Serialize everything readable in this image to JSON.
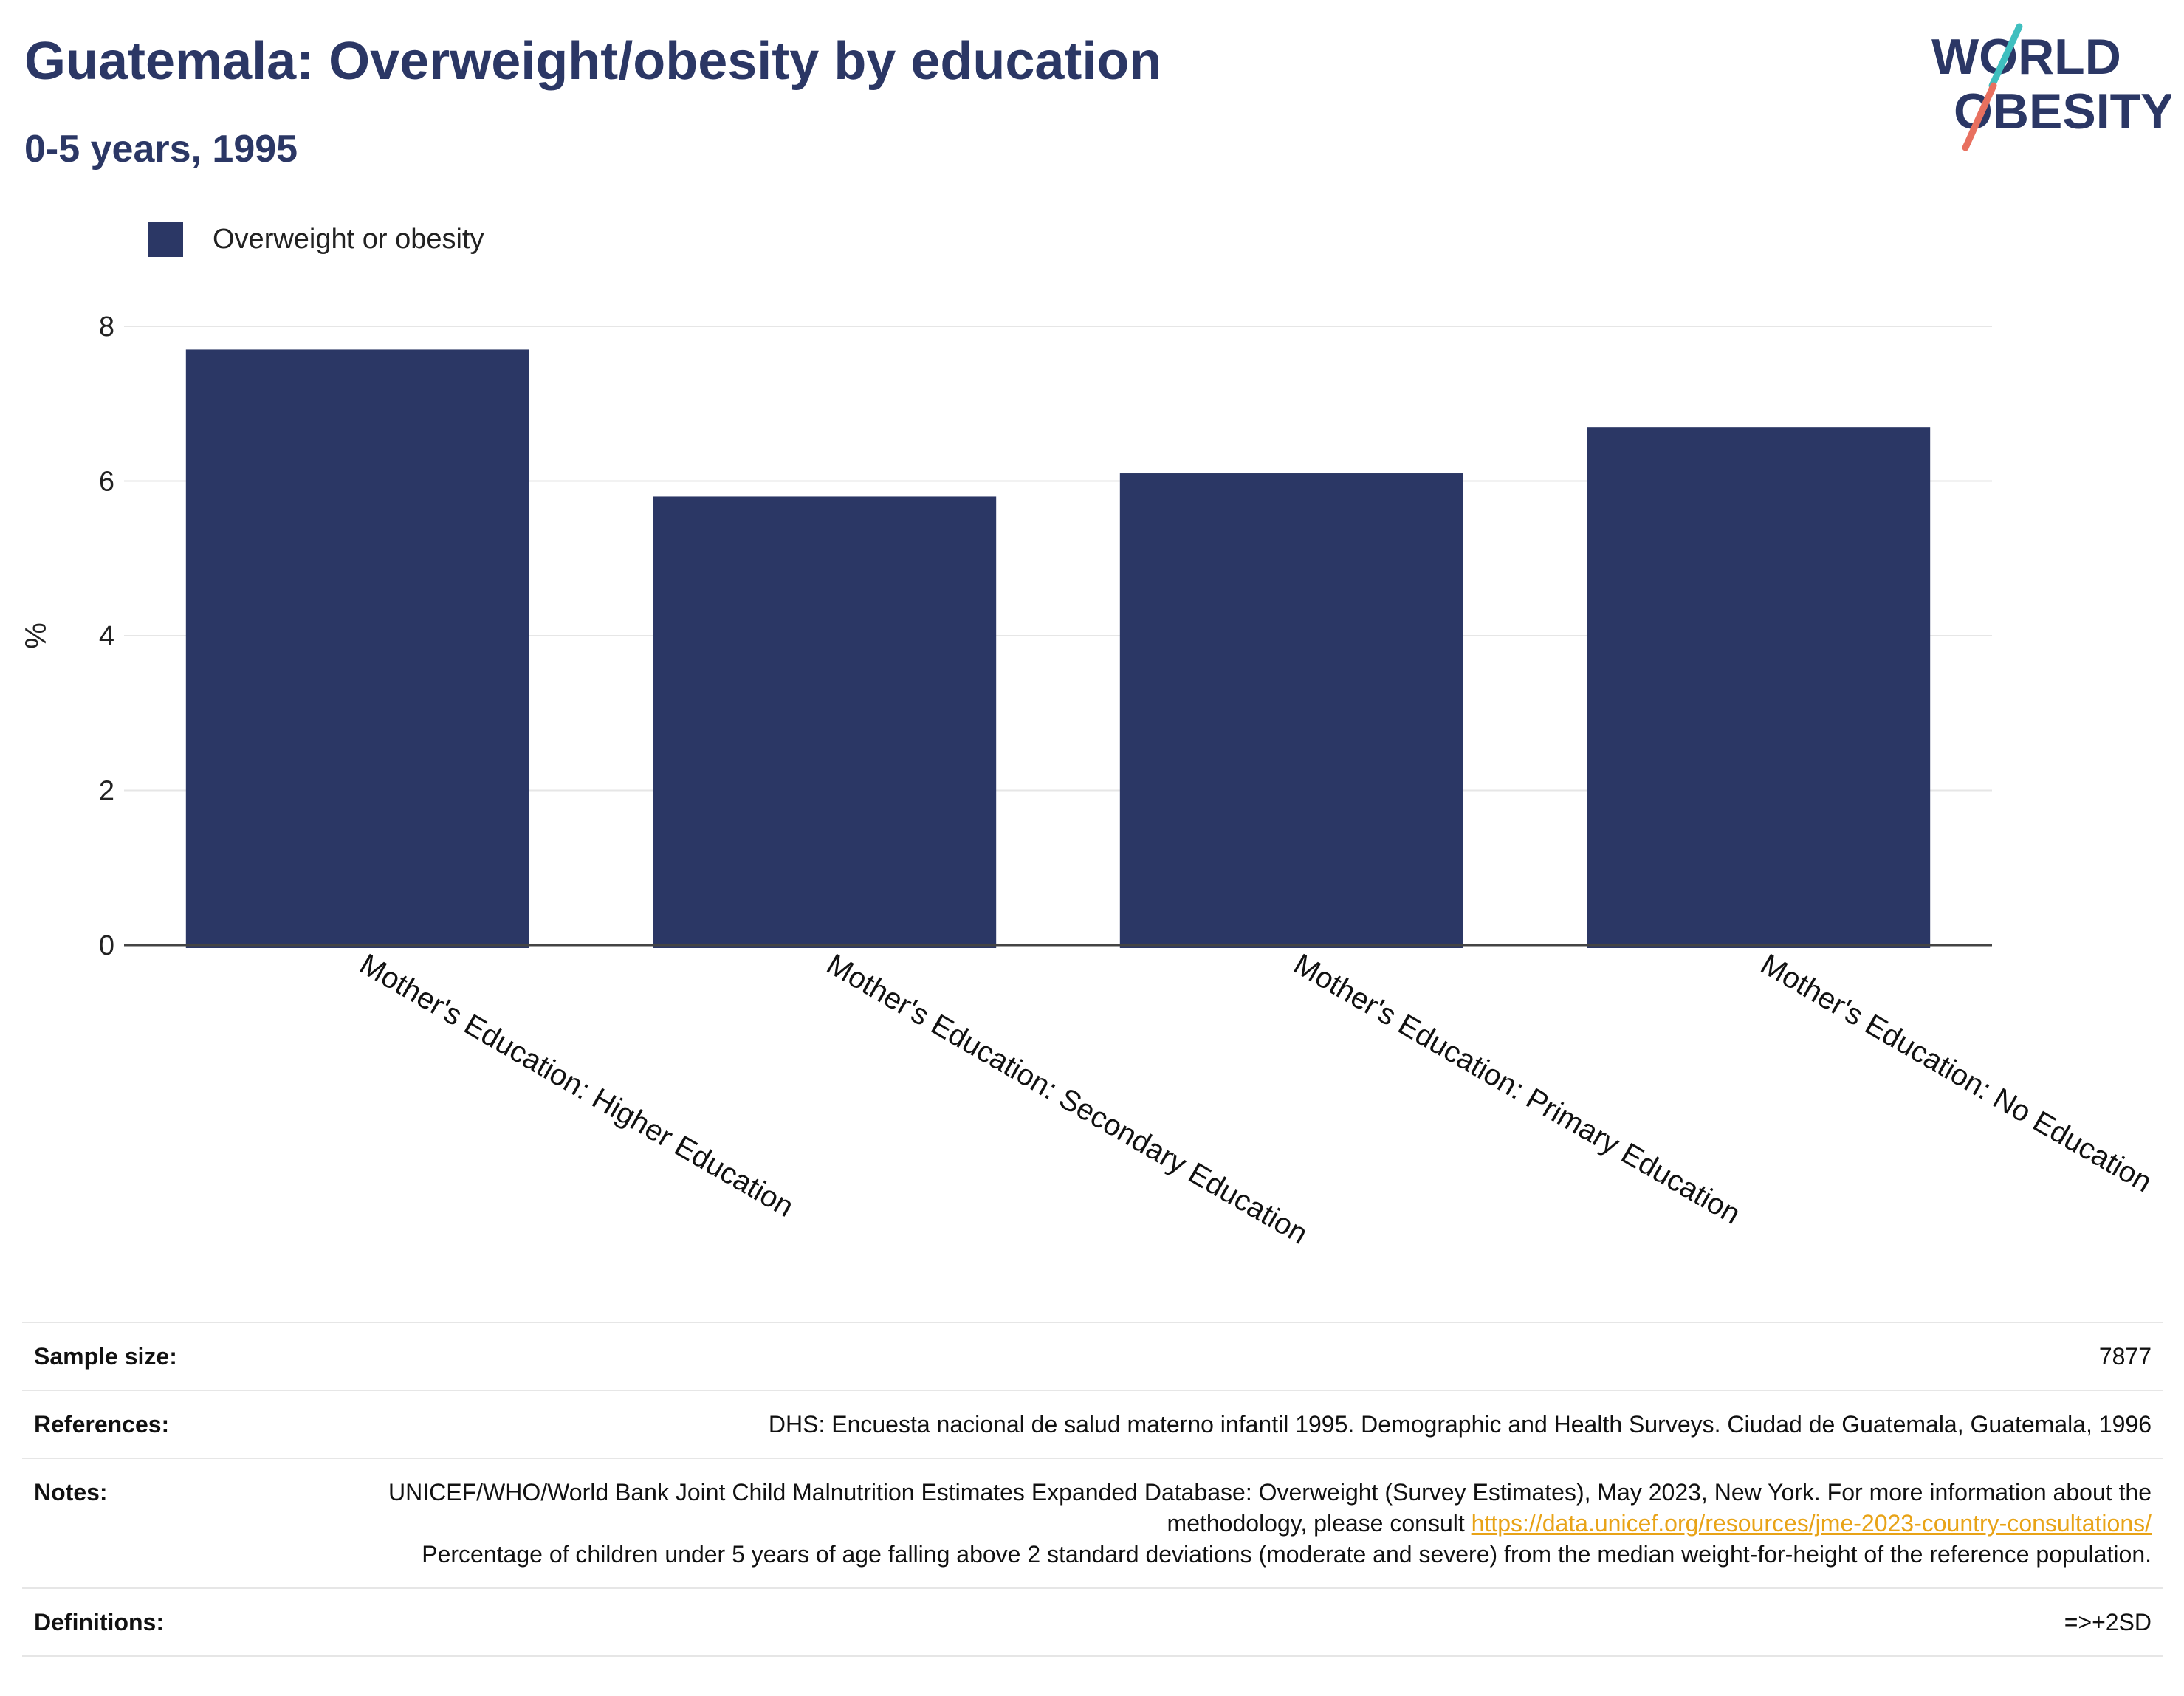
{
  "header": {
    "title": "Guatemala: Overweight/obesity by education",
    "subtitle": "0-5 years, 1995"
  },
  "logo": {
    "line1": "WORLD",
    "line2": "OBESITY",
    "colors": {
      "text": "#2b3765",
      "slash_top": "#3fbfbf",
      "slash_bottom": "#e8705f"
    }
  },
  "legend": {
    "label": "Overweight or obesity",
    "color": "#2b3765"
  },
  "chart_data": {
    "type": "bar",
    "categories": [
      "Mother's Education: Higher Education",
      "Mother's Education: Secondary Education",
      "Mother's Education: Primary Education",
      "Mother's Education: No Education"
    ],
    "series": [
      {
        "name": "Overweight or obesity",
        "values": [
          7.7,
          5.8,
          6.1,
          6.7
        ],
        "color": "#2b3765"
      }
    ],
    "ylabel": "%",
    "ylim": [
      0,
      8
    ],
    "yticks": [
      "0",
      "2",
      "4",
      "6",
      "8"
    ],
    "grid": true,
    "legend_position": "top-left"
  },
  "meta": {
    "sample_size_label": "Sample size:",
    "sample_size_value": "7877",
    "references_label": "References:",
    "references_value": "DHS: Encuesta nacional de salud materno infantil 1995. Demographic and Health Surveys. Ciudad de Guatemala, Guatemala, 1996",
    "notes_label": "Notes:",
    "notes_text_1": "UNICEF/WHO/World Bank Joint Child Malnutrition Estimates Expanded Database: Overweight (Survey Estimates), May 2023, New York. For more information about the methodology, please consult ",
    "notes_link": "https://data.unicef.org/resources/jme-2023-country-consultations/",
    "notes_text_2": "Percentage of children under 5 years of age falling above 2 standard deviations (moderate and severe) from the median weight-for-height of the reference population.",
    "definitions_label": "Definitions:",
    "definitions_value": "=>+2SD"
  }
}
